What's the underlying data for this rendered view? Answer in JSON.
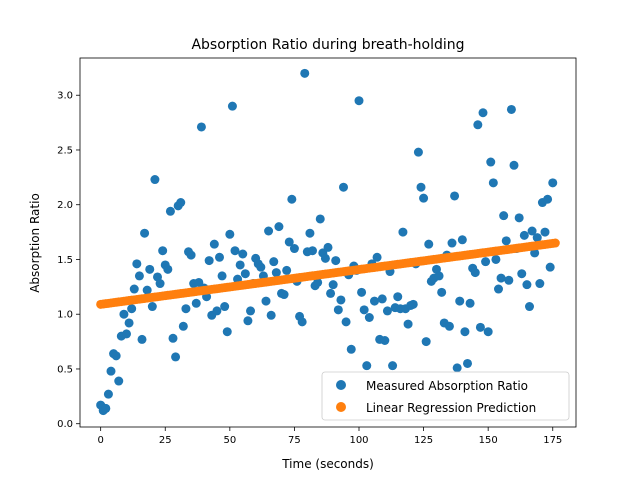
{
  "chart_data": {
    "type": "scatter",
    "title": "Absorption Ratio during breath-holding",
    "xlabel": "Time (seconds)",
    "ylabel": "Absorption Ratio",
    "xlim": [
      -8,
      184
    ],
    "ylim": [
      -0.03,
      3.34
    ],
    "xticks": [
      0,
      25,
      50,
      75,
      100,
      125,
      150,
      175
    ],
    "yticks": [
      0.0,
      0.5,
      1.0,
      1.5,
      2.0,
      2.5,
      3.0
    ],
    "xtick_labels": [
      "0",
      "25",
      "50",
      "75",
      "100",
      "125",
      "150",
      "175"
    ],
    "ytick_labels": [
      "0.0",
      "0.5",
      "1.0",
      "1.5",
      "2.0",
      "2.5",
      "3.0"
    ],
    "grid": false,
    "legend_position": "bottom-right",
    "legend": [
      "Measured Absorption Ratio",
      "Linear Regression Prediction"
    ],
    "series": [
      {
        "name": "Measured Absorption Ratio",
        "color": "#1f77b4",
        "points": [
          [
            0,
            0.17
          ],
          [
            1,
            0.12
          ],
          [
            2,
            0.14
          ],
          [
            3,
            0.27
          ],
          [
            4,
            0.48
          ],
          [
            5,
            0.64
          ],
          [
            6,
            0.62
          ],
          [
            7,
            0.39
          ],
          [
            8,
            0.8
          ],
          [
            9,
            1.0
          ],
          [
            10,
            0.82
          ],
          [
            11,
            0.92
          ],
          [
            12,
            1.05
          ],
          [
            13,
            1.23
          ],
          [
            14,
            1.46
          ],
          [
            15,
            1.35
          ],
          [
            16,
            0.77
          ],
          [
            17,
            1.74
          ],
          [
            18,
            1.22
          ],
          [
            19,
            1.41
          ],
          [
            20,
            1.07
          ],
          [
            21,
            2.23
          ],
          [
            22,
            1.34
          ],
          [
            23,
            1.28
          ],
          [
            24,
            1.58
          ],
          [
            25,
            1.45
          ],
          [
            26,
            1.41
          ],
          [
            27,
            1.94
          ],
          [
            28,
            0.78
          ],
          [
            29,
            0.61
          ],
          [
            30,
            1.99
          ],
          [
            31,
            2.02
          ],
          [
            32,
            0.89
          ],
          [
            33,
            1.05
          ],
          [
            34,
            1.57
          ],
          [
            35,
            1.54
          ],
          [
            36,
            1.28
          ],
          [
            37,
            1.1
          ],
          [
            38,
            1.29
          ],
          [
            39,
            2.71
          ],
          [
            40,
            1.24
          ],
          [
            41,
            1.16
          ],
          [
            42,
            1.49
          ],
          [
            43,
            0.99
          ],
          [
            44,
            1.64
          ],
          [
            45,
            1.03
          ],
          [
            46,
            1.52
          ],
          [
            47,
            1.35
          ],
          [
            48,
            1.07
          ],
          [
            49,
            0.84
          ],
          [
            50,
            1.73
          ],
          [
            51,
            2.9
          ],
          [
            52,
            1.58
          ],
          [
            53,
            1.32
          ],
          [
            54,
            1.45
          ],
          [
            55,
            1.55
          ],
          [
            56,
            1.37
          ],
          [
            57,
            0.94
          ],
          [
            58,
            1.03
          ],
          [
            59,
            1.28
          ],
          [
            60,
            1.51
          ],
          [
            61,
            1.46
          ],
          [
            62,
            1.43
          ],
          [
            63,
            1.35
          ],
          [
            64,
            1.12
          ],
          [
            65,
            1.76
          ],
          [
            66,
            0.99
          ],
          [
            67,
            1.48
          ],
          [
            68,
            1.38
          ],
          [
            69,
            1.8
          ],
          [
            70,
            1.19
          ],
          [
            71,
            1.18
          ],
          [
            72,
            1.4
          ],
          [
            73,
            1.66
          ],
          [
            74,
            2.05
          ],
          [
            75,
            1.6
          ],
          [
            76,
            1.3
          ],
          [
            77,
            0.98
          ],
          [
            78,
            0.93
          ],
          [
            79,
            3.2
          ],
          [
            80,
            1.57
          ],
          [
            81,
            1.74
          ],
          [
            82,
            1.58
          ],
          [
            83,
            1.26
          ],
          [
            84,
            1.29
          ],
          [
            85,
            1.87
          ],
          [
            86,
            1.56
          ],
          [
            87,
            1.51
          ],
          [
            88,
            1.61
          ],
          [
            89,
            1.19
          ],
          [
            90,
            1.27
          ],
          [
            91,
            1.49
          ],
          [
            92,
            1.04
          ],
          [
            93,
            1.13
          ],
          [
            94,
            2.16
          ],
          [
            95,
            0.93
          ],
          [
            96,
            1.36
          ],
          [
            97,
            0.68
          ],
          [
            98,
            1.44
          ],
          [
            99,
            1.4
          ],
          [
            100,
            2.95
          ],
          [
            101,
            1.2
          ],
          [
            102,
            1.04
          ],
          [
            103,
            0.53
          ],
          [
            104,
            0.97
          ],
          [
            105,
            1.46
          ],
          [
            106,
            1.12
          ],
          [
            107,
            1.52
          ],
          [
            108,
            0.77
          ],
          [
            109,
            1.14
          ],
          [
            110,
            0.76
          ],
          [
            111,
            1.03
          ],
          [
            112,
            1.39
          ],
          [
            113,
            0.53
          ],
          [
            114,
            1.06
          ],
          [
            115,
            1.16
          ],
          [
            116,
            1.05
          ],
          [
            117,
            1.75
          ],
          [
            118,
            1.05
          ],
          [
            119,
            0.91
          ],
          [
            120,
            1.08
          ],
          [
            121,
            1.09
          ],
          [
            122,
            1.46
          ],
          [
            123,
            2.48
          ],
          [
            124,
            2.16
          ],
          [
            125,
            2.06
          ],
          [
            126,
            0.75
          ],
          [
            127,
            1.64
          ],
          [
            128,
            1.3
          ],
          [
            129,
            1.33
          ],
          [
            130,
            1.41
          ],
          [
            131,
            1.35
          ],
          [
            132,
            1.2
          ],
          [
            133,
            0.92
          ],
          [
            134,
            1.54
          ],
          [
            135,
            0.89
          ],
          [
            136,
            1.65
          ],
          [
            137,
            2.08
          ],
          [
            138,
            0.51
          ],
          [
            139,
            1.12
          ],
          [
            140,
            1.68
          ],
          [
            141,
            0.84
          ],
          [
            142,
            0.55
          ],
          [
            143,
            1.1
          ],
          [
            144,
            1.42
          ],
          [
            145,
            1.38
          ],
          [
            146,
            2.73
          ],
          [
            147,
            0.88
          ],
          [
            148,
            2.84
          ],
          [
            149,
            1.48
          ],
          [
            150,
            0.84
          ],
          [
            151,
            2.39
          ],
          [
            152,
            2.2
          ],
          [
            153,
            1.5
          ],
          [
            154,
            1.23
          ],
          [
            155,
            1.33
          ],
          [
            156,
            1.9
          ],
          [
            157,
            1.67
          ],
          [
            158,
            1.31
          ],
          [
            159,
            2.87
          ],
          [
            160,
            2.36
          ],
          [
            161,
            1.6
          ],
          [
            162,
            1.88
          ],
          [
            163,
            1.37
          ],
          [
            164,
            1.72
          ],
          [
            165,
            1.27
          ],
          [
            166,
            1.07
          ],
          [
            167,
            1.76
          ],
          [
            168,
            1.56
          ],
          [
            169,
            1.7
          ],
          [
            170,
            1.28
          ],
          [
            171,
            2.02
          ],
          [
            172,
            1.75
          ],
          [
            173,
            2.05
          ],
          [
            174,
            1.43
          ],
          [
            175,
            2.2
          ]
        ]
      },
      {
        "name": "Linear Regression Prediction",
        "color": "#ff7f0e",
        "x_start": 0,
        "x_end": 176,
        "y_start": 1.09,
        "y_end": 1.65,
        "n_points": 177
      }
    ]
  }
}
